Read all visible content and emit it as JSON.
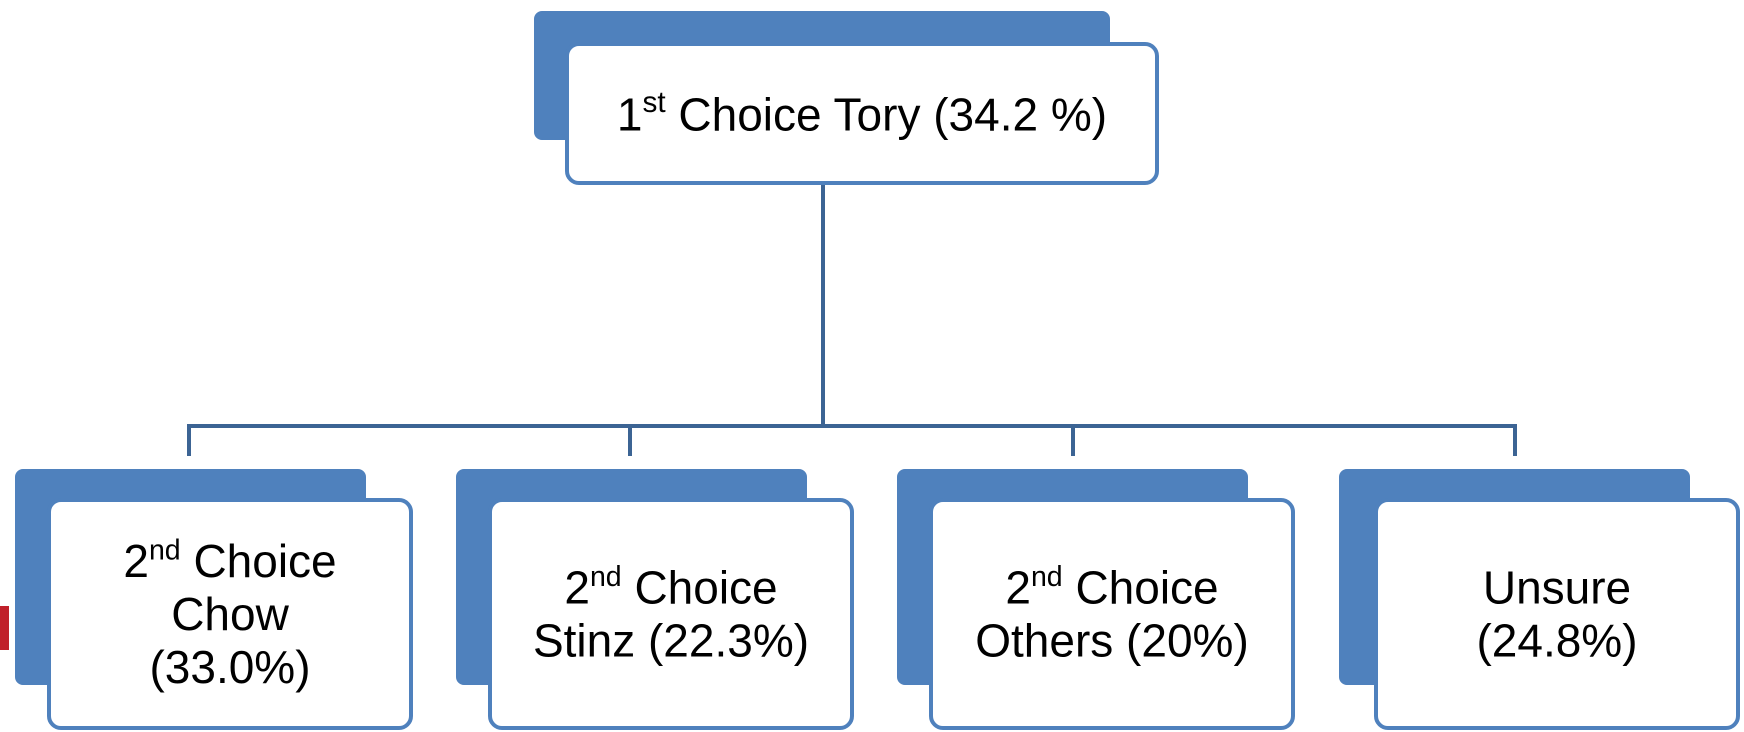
{
  "root": {
    "ordinal": "1",
    "ordinal_suffix": "st",
    "lines": [
      "Choice Tory (34.2 %)"
    ]
  },
  "children": [
    {
      "ordinal": "2",
      "ordinal_suffix": "nd",
      "lines": [
        "Choice",
        "Chow",
        "(33.0%)"
      ]
    },
    {
      "ordinal": "2",
      "ordinal_suffix": "nd",
      "lines": [
        "Choice",
        "Stinz (22.3%)"
      ]
    },
    {
      "ordinal": "2",
      "ordinal_suffix": "nd",
      "lines": [
        "Choice",
        "Others (20%)"
      ]
    },
    {
      "lines": [
        "Unsure",
        "(24.8%)"
      ]
    }
  ]
}
